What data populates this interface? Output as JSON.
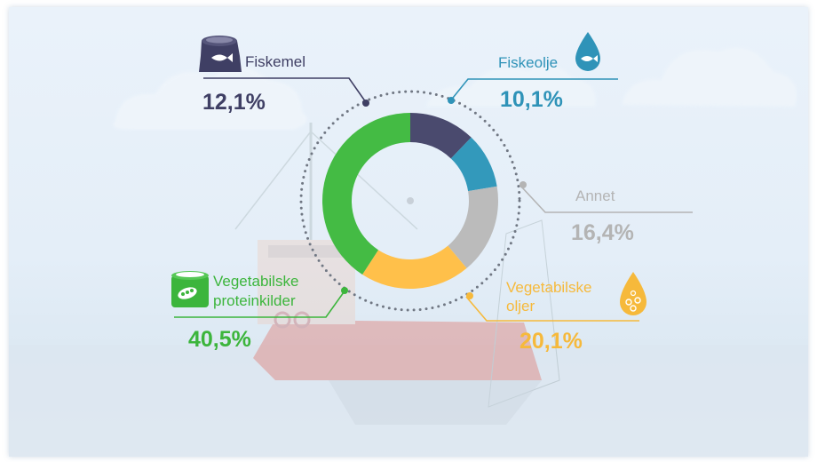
{
  "chart_data": {
    "type": "pie",
    "categories": [
      "Fiskemel",
      "Fiskeolje",
      "Annet",
      "Vegetabilske oljer",
      "Vegetabilske proteinkilder"
    ],
    "values": [
      12.1,
      10.1,
      16.4,
      20.1,
      40.5
    ],
    "colors": [
      "#4a4a6e",
      "#3399bb",
      "#bbbbbb",
      "#ffc04a",
      "#44bb44"
    ],
    "labels": {
      "fiskemel": {
        "name": "Fiskemel",
        "value": "12,1%",
        "color": "#3f3f64"
      },
      "fiskeolje": {
        "name": "Fiskeolje",
        "value": "10,1%",
        "color": "#2f93b8"
      },
      "annet": {
        "name": "Annet",
        "value": "16,4%",
        "color": "#b4b4b4"
      },
      "vegolje": {
        "name_line1": "Vegetabilske",
        "name_line2": "oljer",
        "value": "20,1%",
        "color": "#f6b93b"
      },
      "vegprotein": {
        "name_line1": "Vegetabilske",
        "name_line2": "proteinkilder",
        "value": "40,5%",
        "color": "#3cb53c"
      }
    },
    "icons": [
      "fishmeal-sack-icon",
      "fish-oil-drop-icon",
      "vegetable-oil-drop-icon",
      "plant-protein-can-icon"
    ]
  }
}
